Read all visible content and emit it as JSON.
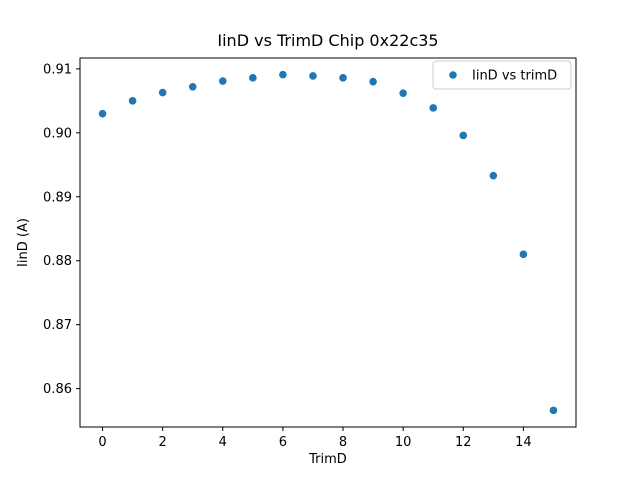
{
  "chart_data": {
    "type": "scatter",
    "title": "IinD vs TrimD Chip 0x22c35",
    "xlabel": "TrimD",
    "ylabel": "IinD (A)",
    "legend_label": "IinD vs trimD",
    "legend_position": "upper right",
    "x": [
      0,
      1,
      2,
      3,
      4,
      5,
      6,
      7,
      8,
      9,
      10,
      11,
      12,
      13,
      14,
      15
    ],
    "y": [
      0.903,
      0.905,
      0.9063,
      0.9072,
      0.9081,
      0.9086,
      0.9091,
      0.9089,
      0.9086,
      0.908,
      0.9062,
      0.9039,
      0.8996,
      0.8933,
      0.881,
      0.8566
    ],
    "xticks": [
      0,
      2,
      4,
      6,
      8,
      10,
      12,
      14
    ],
    "yticks": [
      0.86,
      0.87,
      0.88,
      0.89,
      0.9,
      0.91
    ],
    "xlim": [
      -0.75,
      15.75
    ],
    "ylim": [
      0.854,
      0.9117
    ],
    "grid": false,
    "marker_color": "#1f77b4",
    "spine_color": "#000000",
    "background": "#ffffff"
  }
}
